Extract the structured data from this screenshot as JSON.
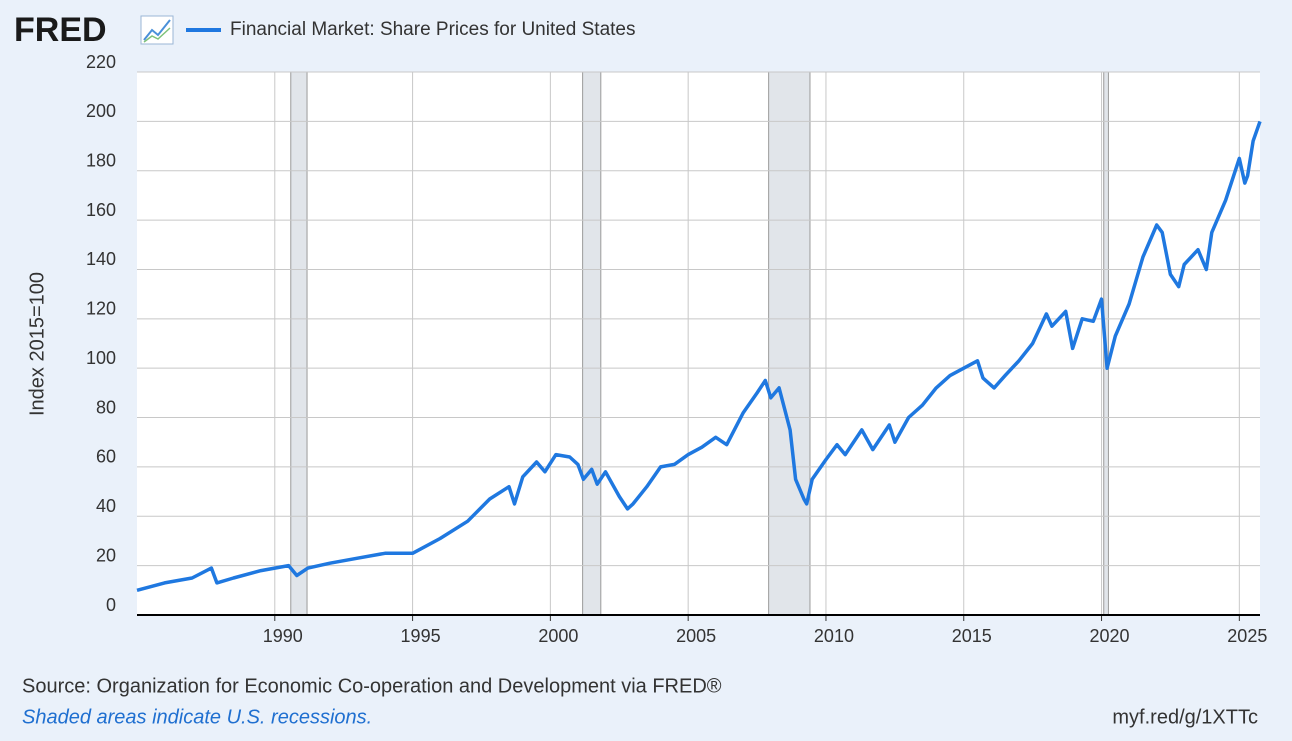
{
  "chart_data": {
    "type": "line",
    "logo": "FRED",
    "y_label": "Index 2015=100",
    "source": "Source: Organization for Economic Co-operation and Development via FRED®",
    "note": "Shaded areas indicate U.S. recessions.",
    "url": "myf.red/g/1XTTc",
    "xlim": [
      1985,
      2025.75
    ],
    "xticks": [
      1990,
      1995,
      2000,
      2005,
      2010,
      2015,
      2020,
      2025
    ],
    "ylim": [
      0,
      220
    ],
    "yticks": [
      0,
      20,
      40,
      60,
      80,
      100,
      120,
      140,
      160,
      180,
      200,
      220
    ],
    "grid": true,
    "recessions": [
      [
        1990.58,
        1991.17
      ],
      [
        2001.17,
        2001.83
      ],
      [
        2007.92,
        2009.42
      ],
      [
        2020.08,
        2020.25
      ]
    ],
    "recession_color": "#e1e5ea",
    "x": [
      1985.0,
      1986.0,
      1987.0,
      1987.7,
      1987.9,
      1988.5,
      1989.5,
      1990.0,
      1990.5,
      1990.8,
      1991.2,
      1992.0,
      1993.0,
      1994.0,
      1995.0,
      1996.0,
      1997.0,
      1997.8,
      1998.5,
      1998.7,
      1999.0,
      1999.5,
      1999.8,
      2000.2,
      2000.7,
      2001.0,
      2001.2,
      2001.5,
      2001.7,
      2002.0,
      2002.5,
      2002.8,
      2003.0,
      2003.5,
      2004.0,
      2004.5,
      2005.0,
      2005.5,
      2006.0,
      2006.4,
      2007.0,
      2007.5,
      2007.8,
      2008.0,
      2008.3,
      2008.7,
      2008.9,
      2009.2,
      2009.3,
      2009.5,
      2010.0,
      2010.4,
      2010.7,
      2011.3,
      2011.7,
      2012.3,
      2012.5,
      2013.0,
      2013.5,
      2014.0,
      2014.5,
      2015.0,
      2015.5,
      2015.7,
      2016.1,
      2016.5,
      2017.0,
      2017.5,
      2018.0,
      2018.2,
      2018.7,
      2018.95,
      2019.3,
      2019.7,
      2020.0,
      2020.2,
      2020.5,
      2021.0,
      2021.5,
      2022.0,
      2022.2,
      2022.5,
      2022.8,
      2023.0,
      2023.5,
      2023.8,
      2024.0,
      2024.5,
      2025.0,
      2025.2,
      2025.3,
      2025.5,
      2025.75
    ],
    "series": [
      {
        "name": "Financial Market: Share Prices for United States",
        "color": "#1f78e0",
        "values": [
          10,
          13,
          15,
          19,
          13,
          15,
          18,
          19,
          20,
          16,
          19,
          21,
          23,
          25,
          25,
          31,
          38,
          47,
          52,
          45,
          56,
          62,
          58,
          65,
          64,
          61,
          55,
          59,
          53,
          58,
          48,
          43,
          45,
          52,
          60,
          61,
          65,
          68,
          72,
          69,
          82,
          90,
          95,
          88,
          92,
          75,
          55,
          47,
          45,
          55,
          63,
          69,
          65,
          75,
          67,
          77,
          70,
          80,
          85,
          92,
          97,
          100,
          103,
          96,
          92,
          97,
          103,
          110,
          122,
          117,
          123,
          108,
          120,
          119,
          128,
          100,
          113,
          126,
          145,
          158,
          155,
          138,
          133,
          142,
          148,
          140,
          155,
          168,
          185,
          175,
          178,
          192,
          200
        ]
      }
    ]
  }
}
